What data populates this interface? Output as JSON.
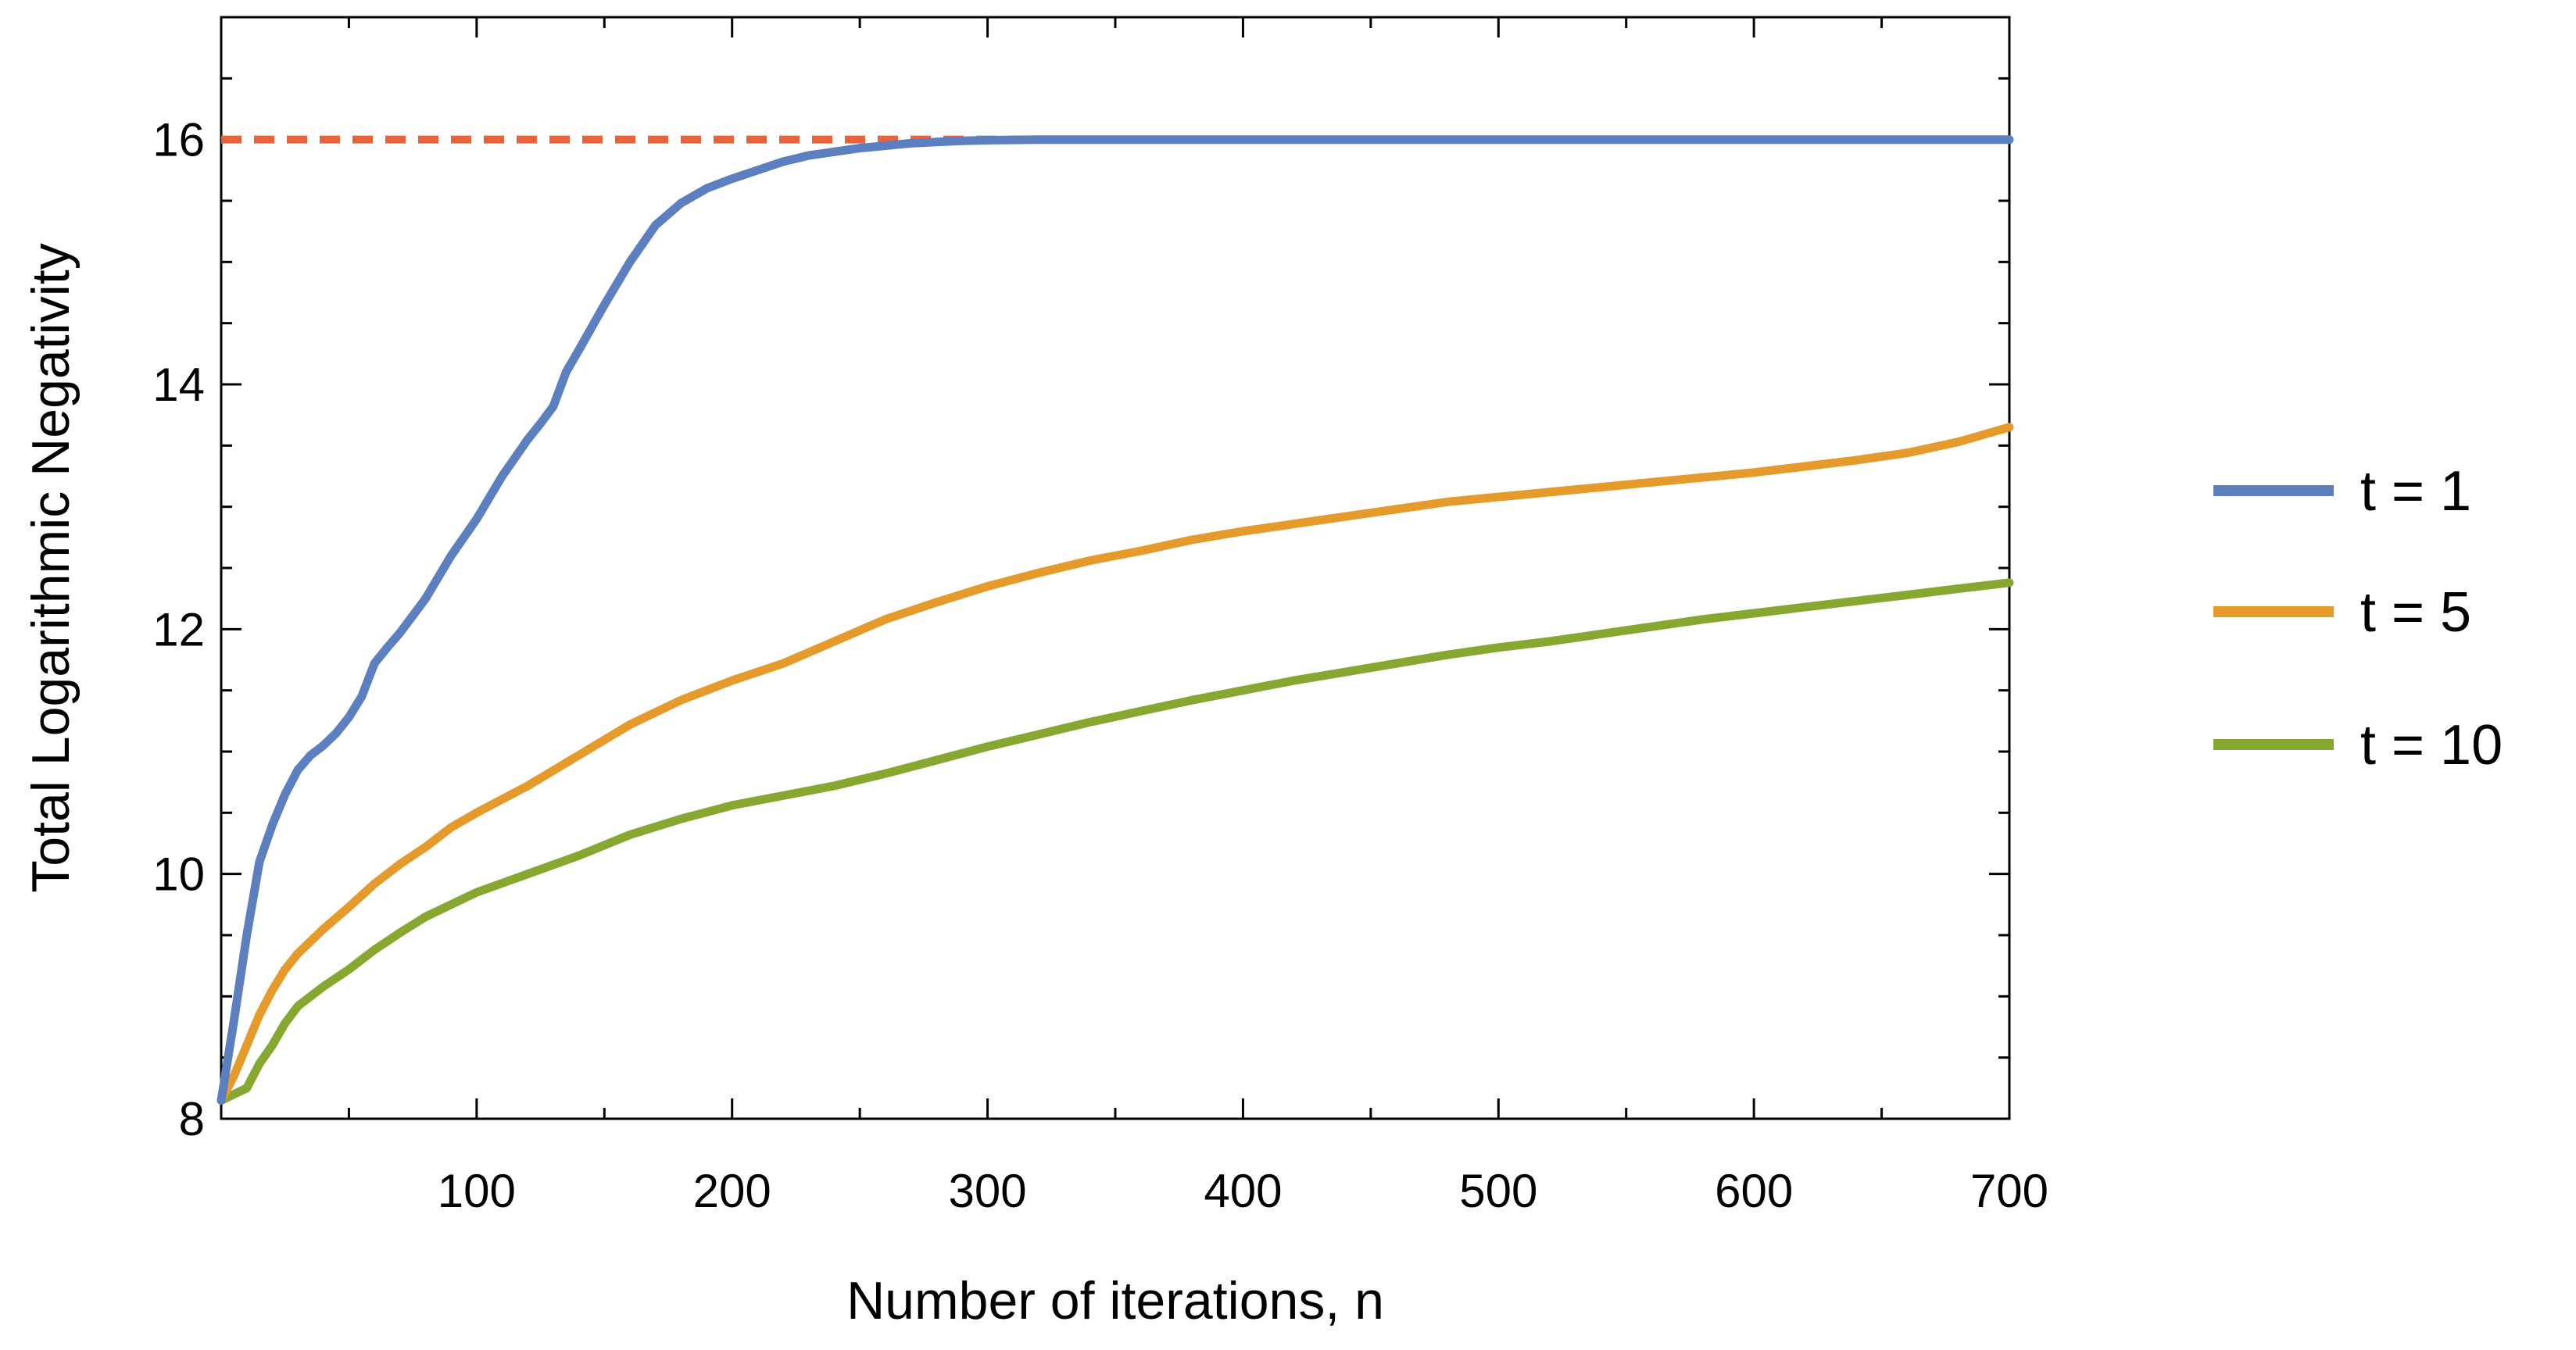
{
  "chart_data": {
    "type": "line",
    "title": "",
    "xlabel": "Number of iterations, n",
    "ylabel": "Total Logarithmic Negativity",
    "xlim": [
      0,
      700
    ],
    "ylim": [
      8,
      17
    ],
    "xticks": [
      100,
      200,
      300,
      400,
      500,
      600,
      700
    ],
    "yticks": [
      8,
      10,
      12,
      14,
      16
    ],
    "x_tick_labels": [
      "100",
      "200",
      "300",
      "400",
      "500",
      "600",
      "700"
    ],
    "y_tick_labels": [
      "8",
      "10",
      "12",
      "14",
      "16"
    ],
    "grid": false,
    "legend": {
      "position": "right"
    },
    "reference_line": {
      "y": 16,
      "style": "dashed",
      "color": "#E8633A"
    },
    "series": [
      {
        "name": "t = 1",
        "color": "#5B7FBF",
        "x": [
          0,
          5,
          10,
          15,
          20,
          25,
          30,
          35,
          40,
          45,
          50,
          55,
          60,
          65,
          70,
          80,
          90,
          100,
          110,
          120,
          125,
          130,
          135,
          140,
          150,
          160,
          170,
          180,
          190,
          200,
          210,
          220,
          230,
          240,
          250,
          260,
          270,
          280,
          290,
          300,
          320,
          340,
          400,
          500,
          600,
          700
        ],
        "y": [
          8.15,
          8.8,
          9.5,
          10.1,
          10.4,
          10.65,
          10.85,
          10.97,
          11.05,
          11.15,
          11.28,
          11.45,
          11.72,
          11.85,
          11.97,
          12.25,
          12.6,
          12.9,
          13.25,
          13.55,
          13.68,
          13.82,
          14.1,
          14.28,
          14.65,
          15.0,
          15.3,
          15.48,
          15.6,
          15.68,
          15.75,
          15.82,
          15.87,
          15.9,
          15.93,
          15.95,
          15.97,
          15.98,
          15.99,
          15.995,
          16.0,
          16.0,
          16.0,
          16.0,
          16.0,
          16.0
        ]
      },
      {
        "name": "t = 5",
        "color": "#E59A2C",
        "x": [
          0,
          5,
          10,
          15,
          20,
          25,
          30,
          40,
          50,
          60,
          70,
          80,
          90,
          100,
          120,
          140,
          160,
          180,
          200,
          220,
          240,
          260,
          280,
          300,
          320,
          340,
          360,
          380,
          400,
          420,
          440,
          460,
          480,
          500,
          520,
          540,
          560,
          580,
          600,
          620,
          640,
          660,
          680,
          700
        ],
        "y": [
          8.15,
          8.35,
          8.6,
          8.85,
          9.05,
          9.22,
          9.35,
          9.55,
          9.73,
          9.92,
          10.08,
          10.22,
          10.38,
          10.5,
          10.72,
          10.97,
          11.22,
          11.42,
          11.58,
          11.72,
          11.9,
          12.08,
          12.22,
          12.35,
          12.46,
          12.56,
          12.64,
          12.73,
          12.8,
          12.86,
          12.92,
          12.98,
          13.04,
          13.08,
          13.12,
          13.16,
          13.2,
          13.24,
          13.28,
          13.33,
          13.38,
          13.44,
          13.53,
          13.65
        ]
      },
      {
        "name": "t = 10",
        "color": "#86A730",
        "x": [
          0,
          10,
          15,
          20,
          25,
          30,
          40,
          50,
          60,
          70,
          80,
          90,
          100,
          120,
          140,
          160,
          180,
          200,
          220,
          240,
          260,
          280,
          300,
          320,
          340,
          360,
          380,
          400,
          420,
          440,
          460,
          480,
          500,
          520,
          540,
          560,
          580,
          600,
          620,
          640,
          660,
          680,
          700
        ],
        "y": [
          8.15,
          8.25,
          8.45,
          8.6,
          8.78,
          8.92,
          9.08,
          9.22,
          9.38,
          9.52,
          9.65,
          9.75,
          9.85,
          10.0,
          10.15,
          10.32,
          10.45,
          10.56,
          10.64,
          10.72,
          10.82,
          10.93,
          11.04,
          11.14,
          11.24,
          11.33,
          11.42,
          11.5,
          11.58,
          11.65,
          11.72,
          11.79,
          11.85,
          11.9,
          11.96,
          12.02,
          12.08,
          12.13,
          12.18,
          12.23,
          12.28,
          12.33,
          12.38
        ]
      }
    ]
  }
}
